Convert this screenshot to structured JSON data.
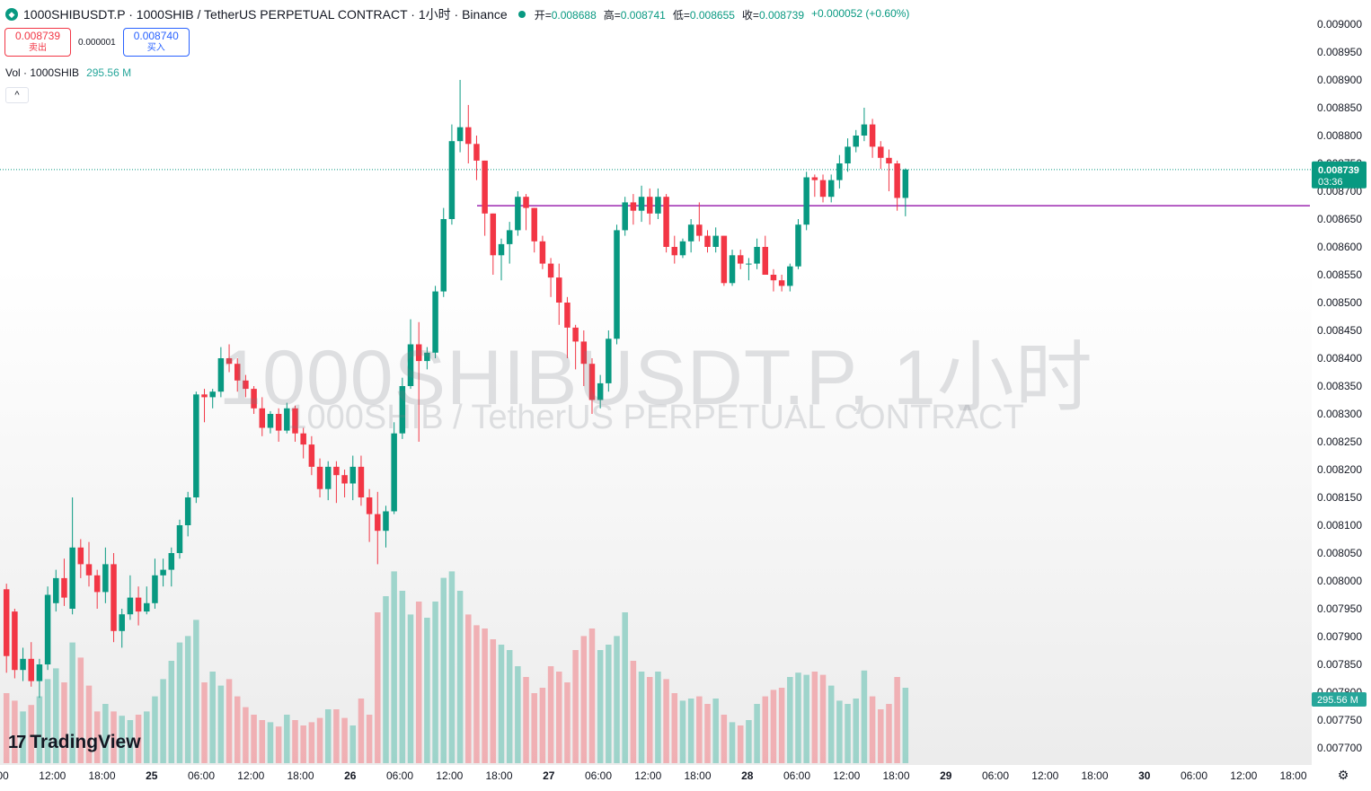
{
  "header": {
    "symbol_line": "1000SHIBUSDT.P · 1000SHIB / TetherUS PERPETUAL CONTRACT · 1小时 · Binance",
    "ohlc": [
      {
        "label": "开=",
        "value": "0.008688"
      },
      {
        "label": "高=",
        "value": "0.008741"
      },
      {
        "label": "低=",
        "value": "0.008655"
      },
      {
        "label": "收=",
        "value": "0.008739"
      }
    ],
    "change": "+0.000052 (+0.60%)"
  },
  "trade": {
    "sell_price": "0.008739",
    "sell_label": "卖出",
    "spread": "0.000001",
    "buy_price": "0.008740",
    "buy_label": "买入"
  },
  "volume_legend": {
    "label": "Vol · 1000SHIB",
    "value": "295.56 M"
  },
  "watermark": {
    "title": "1000SHIBUSDT.P, 1小时",
    "subtitle": "1000SHIB / TetherUS PERPETUAL CONTRACT"
  },
  "branding": {
    "logo_text": "TradingView"
  },
  "price_axis_labels": [
    "0.009000",
    "0.008950",
    "0.008900",
    "0.008850",
    "0.008800",
    "0.008750",
    "0.008700",
    "0.008650",
    "0.008600",
    "0.008550",
    "0.008500",
    "0.008450",
    "0.008400",
    "0.008350",
    "0.008300",
    "0.008250",
    "0.008200",
    "0.008150",
    "0.008100",
    "0.008050",
    "0.008000",
    "0.007950",
    "0.007900",
    "0.007850",
    "0.007800",
    "0.007750",
    "0.007700"
  ],
  "current_price_tag": {
    "price": "0.008739",
    "countdown": "03:36"
  },
  "volume_tag": "295.56 M",
  "time_axis_labels": [
    "00",
    "12:00",
    "18:00",
    "25",
    "06:00",
    "12:00",
    "18:00",
    "26",
    "06:00",
    "12:00",
    "18:00",
    "27",
    "06:00",
    "12:00",
    "18:00",
    "28",
    "06:00",
    "12:00",
    "18:00",
    "29",
    "06:00",
    "12:00",
    "18:00",
    "30",
    "06:00",
    "12:00",
    "18:00"
  ],
  "chart_data": {
    "type": "candlestick",
    "interval": "1h",
    "up_color": "#089981",
    "down_color": "#f23645",
    "vol_up_color": "#8fcfc4",
    "vol_down_color": "#f0a5a9",
    "horizontal_line": {
      "price": 0.008674,
      "color": "#9c27b0"
    },
    "ylim": [
      0.00768,
      0.00903
    ],
    "candles": [
      [
        0.007985,
        0.007995,
        0.007835,
        0.007865,
        65
      ],
      [
        0.007945,
        0.00795,
        0.007825,
        0.00784,
        58
      ],
      [
        0.00784,
        0.00788,
        0.00782,
        0.00786,
        48
      ],
      [
        0.00786,
        0.00789,
        0.00781,
        0.00782,
        54
      ],
      [
        0.00782,
        0.00786,
        0.00779,
        0.00785,
        62
      ],
      [
        0.00785,
        0.00799,
        0.00784,
        0.007975,
        78
      ],
      [
        0.00796,
        0.00802,
        0.007945,
        0.008005,
        88
      ],
      [
        0.008005,
        0.00804,
        0.007955,
        0.00797,
        75
      ],
      [
        0.00795,
        0.00815,
        0.00794,
        0.00806,
        112
      ],
      [
        0.00806,
        0.008075,
        0.008005,
        0.00803,
        98
      ],
      [
        0.00803,
        0.00807,
        0.00799,
        0.00801,
        72
      ],
      [
        0.00801,
        0.00802,
        0.00795,
        0.00798,
        48
      ],
      [
        0.00798,
        0.00806,
        0.00796,
        0.00803,
        55
      ],
      [
        0.00803,
        0.00805,
        0.00789,
        0.00791,
        48
      ],
      [
        0.00791,
        0.00795,
        0.00788,
        0.00794,
        44
      ],
      [
        0.00794,
        0.00801,
        0.00793,
        0.00797,
        40
      ],
      [
        0.00797,
        0.00799,
        0.00792,
        0.007945,
        45
      ],
      [
        0.007945,
        0.00799,
        0.00794,
        0.00796,
        48
      ],
      [
        0.00796,
        0.00804,
        0.00795,
        0.00801,
        62
      ],
      [
        0.00801,
        0.00804,
        0.00799,
        0.00802,
        78
      ],
      [
        0.00802,
        0.00806,
        0.00799,
        0.00805,
        95
      ],
      [
        0.00805,
        0.00811,
        0.00804,
        0.0081,
        112
      ],
      [
        0.0081,
        0.00816,
        0.00808,
        0.00815,
        118
      ],
      [
        0.00815,
        0.00834,
        0.00814,
        0.008335,
        133
      ],
      [
        0.008335,
        0.008345,
        0.008285,
        0.00833,
        75
      ],
      [
        0.00833,
        0.008345,
        0.00831,
        0.00834,
        85
      ],
      [
        0.00834,
        0.00842,
        0.00833,
        0.0084,
        72
      ],
      [
        0.0084,
        0.008425,
        0.008375,
        0.00839,
        78
      ],
      [
        0.00839,
        0.0084,
        0.00834,
        0.00836,
        62
      ],
      [
        0.00836,
        0.00837,
        0.00833,
        0.008345,
        52
      ],
      [
        0.008345,
        0.00835,
        0.0083,
        0.00831,
        45
      ],
      [
        0.00831,
        0.00833,
        0.00826,
        0.008275,
        40
      ],
      [
        0.008275,
        0.008305,
        0.008265,
        0.0083,
        38
      ],
      [
        0.0083,
        0.00831,
        0.00825,
        0.00827,
        34
      ],
      [
        0.00827,
        0.00832,
        0.008265,
        0.00831,
        45
      ],
      [
        0.00831,
        0.008315,
        0.00825,
        0.008265,
        40
      ],
      [
        0.008265,
        0.008275,
        0.00822,
        0.008245,
        35
      ],
      [
        0.008245,
        0.00826,
        0.00819,
        0.008205,
        38
      ],
      [
        0.008205,
        0.00822,
        0.00815,
        0.008165,
        42
      ],
      [
        0.008165,
        0.008215,
        0.008145,
        0.008205,
        50
      ],
      [
        0.008205,
        0.008215,
        0.00814,
        0.00819,
        50
      ],
      [
        0.00819,
        0.0082,
        0.00815,
        0.008175,
        42
      ],
      [
        0.008175,
        0.008225,
        0.008145,
        0.008205,
        35
      ],
      [
        0.008205,
        0.008225,
        0.008135,
        0.00815,
        60
      ],
      [
        0.00815,
        0.008165,
        0.00807,
        0.00812,
        45
      ],
      [
        0.00812,
        0.00816,
        0.00803,
        0.00809,
        140
      ],
      [
        0.00809,
        0.008135,
        0.00806,
        0.008125,
        155
      ],
      [
        0.008125,
        0.008285,
        0.00812,
        0.008265,
        178
      ],
      [
        0.008265,
        0.008365,
        0.008255,
        0.00835,
        160
      ],
      [
        0.00835,
        0.00847,
        0.008345,
        0.008425,
        138
      ],
      [
        0.008425,
        0.008465,
        0.00825,
        0.008395,
        150
      ],
      [
        0.008395,
        0.00842,
        0.00838,
        0.00841,
        135
      ],
      [
        0.00841,
        0.00853,
        0.0084,
        0.00852,
        150
      ],
      [
        0.00852,
        0.00867,
        0.00851,
        0.00865,
        172
      ],
      [
        0.00865,
        0.00882,
        0.00864,
        0.00879,
        178
      ],
      [
        0.00879,
        0.0089,
        0.00877,
        0.008815,
        160
      ],
      [
        0.008815,
        0.008855,
        0.00875,
        0.008785,
        138
      ],
      [
        0.008785,
        0.0088,
        0.00872,
        0.008755,
        128
      ],
      [
        0.008755,
        0.008755,
        0.00862,
        0.00866,
        125
      ],
      [
        0.00866,
        0.00866,
        0.00855,
        0.008585,
        115
      ],
      [
        0.008585,
        0.008615,
        0.00854,
        0.008605,
        110
      ],
      [
        0.008605,
        0.008645,
        0.00857,
        0.00863,
        105
      ],
      [
        0.00863,
        0.0087,
        0.00862,
        0.00869,
        90
      ],
      [
        0.00869,
        0.008695,
        0.00863,
        0.00867,
        80
      ],
      [
        0.00867,
        0.00867,
        0.00859,
        0.00861,
        65
      ],
      [
        0.00861,
        0.00862,
        0.00856,
        0.00857,
        70
      ],
      [
        0.00857,
        0.00858,
        0.00851,
        0.008545,
        90
      ],
      [
        0.008545,
        0.00857,
        0.00846,
        0.0085,
        85
      ],
      [
        0.0085,
        0.00851,
        0.0084,
        0.008455,
        75
      ],
      [
        0.008455,
        0.00846,
        0.00838,
        0.00843,
        105
      ],
      [
        0.00843,
        0.00845,
        0.00835,
        0.00839,
        118
      ],
      [
        0.00839,
        0.0084,
        0.0083,
        0.008325,
        125
      ],
      [
        0.008325,
        0.00837,
        0.00831,
        0.008355,
        105
      ],
      [
        0.008355,
        0.00845,
        0.00834,
        0.008435,
        110
      ],
      [
        0.008435,
        0.00864,
        0.008425,
        0.00863,
        118
      ],
      [
        0.00863,
        0.00869,
        0.00862,
        0.00868,
        140
      ],
      [
        0.00868,
        0.008695,
        0.00864,
        0.008665,
        95
      ],
      [
        0.008665,
        0.00871,
        0.008645,
        0.00869,
        85
      ],
      [
        0.00869,
        0.008705,
        0.00864,
        0.00866,
        80
      ],
      [
        0.00866,
        0.008705,
        0.00865,
        0.00869,
        85
      ],
      [
        0.00869,
        0.008695,
        0.00859,
        0.0086,
        78
      ],
      [
        0.0086,
        0.00862,
        0.00857,
        0.008585,
        65
      ],
      [
        0.008585,
        0.008615,
        0.00858,
        0.00861,
        58
      ],
      [
        0.00861,
        0.00865,
        0.00859,
        0.00864,
        60
      ],
      [
        0.00864,
        0.00868,
        0.00861,
        0.00862,
        62
      ],
      [
        0.00862,
        0.00863,
        0.00859,
        0.0086,
        55
      ],
      [
        0.0086,
        0.008635,
        0.00859,
        0.00862,
        60
      ],
      [
        0.00862,
        0.00862,
        0.00853,
        0.008535,
        45
      ],
      [
        0.008535,
        0.008595,
        0.00853,
        0.008585,
        38
      ],
      [
        0.008585,
        0.008595,
        0.00856,
        0.00857,
        35
      ],
      [
        0.00857,
        0.00858,
        0.00854,
        0.00857,
        40
      ],
      [
        0.00857,
        0.008615,
        0.00856,
        0.0086,
        55
      ],
      [
        0.0086,
        0.00862,
        0.00855,
        0.00855,
        62
      ],
      [
        0.00855,
        0.00856,
        0.00852,
        0.00854,
        68
      ],
      [
        0.00854,
        0.00855,
        0.00852,
        0.00853,
        70
      ],
      [
        0.00853,
        0.00857,
        0.00852,
        0.008565,
        80
      ],
      [
        0.008565,
        0.00865,
        0.00856,
        0.00864,
        84
      ],
      [
        0.00864,
        0.008735,
        0.00863,
        0.008725,
        82
      ],
      [
        0.008725,
        0.00873,
        0.00869,
        0.00872,
        85
      ],
      [
        0.00872,
        0.00873,
        0.00868,
        0.00869,
        82
      ],
      [
        0.00869,
        0.00873,
        0.00868,
        0.00872,
        72
      ],
      [
        0.00872,
        0.008765,
        0.008705,
        0.00875,
        58
      ],
      [
        0.00875,
        0.008795,
        0.008735,
        0.00878,
        55
      ],
      [
        0.00878,
        0.00881,
        0.00877,
        0.0088,
        60
      ],
      [
        0.0088,
        0.00885,
        0.00879,
        0.00882,
        86
      ],
      [
        0.00882,
        0.00883,
        0.00876,
        0.00878,
        62
      ],
      [
        0.00878,
        0.00879,
        0.00874,
        0.00876,
        50
      ],
      [
        0.00876,
        0.008775,
        0.0087,
        0.00875,
        55
      ],
      [
        0.00875,
        0.008755,
        0.008665,
        0.008688,
        80
      ],
      [
        0.008688,
        0.008741,
        0.008655,
        0.008739,
        70
      ]
    ]
  }
}
